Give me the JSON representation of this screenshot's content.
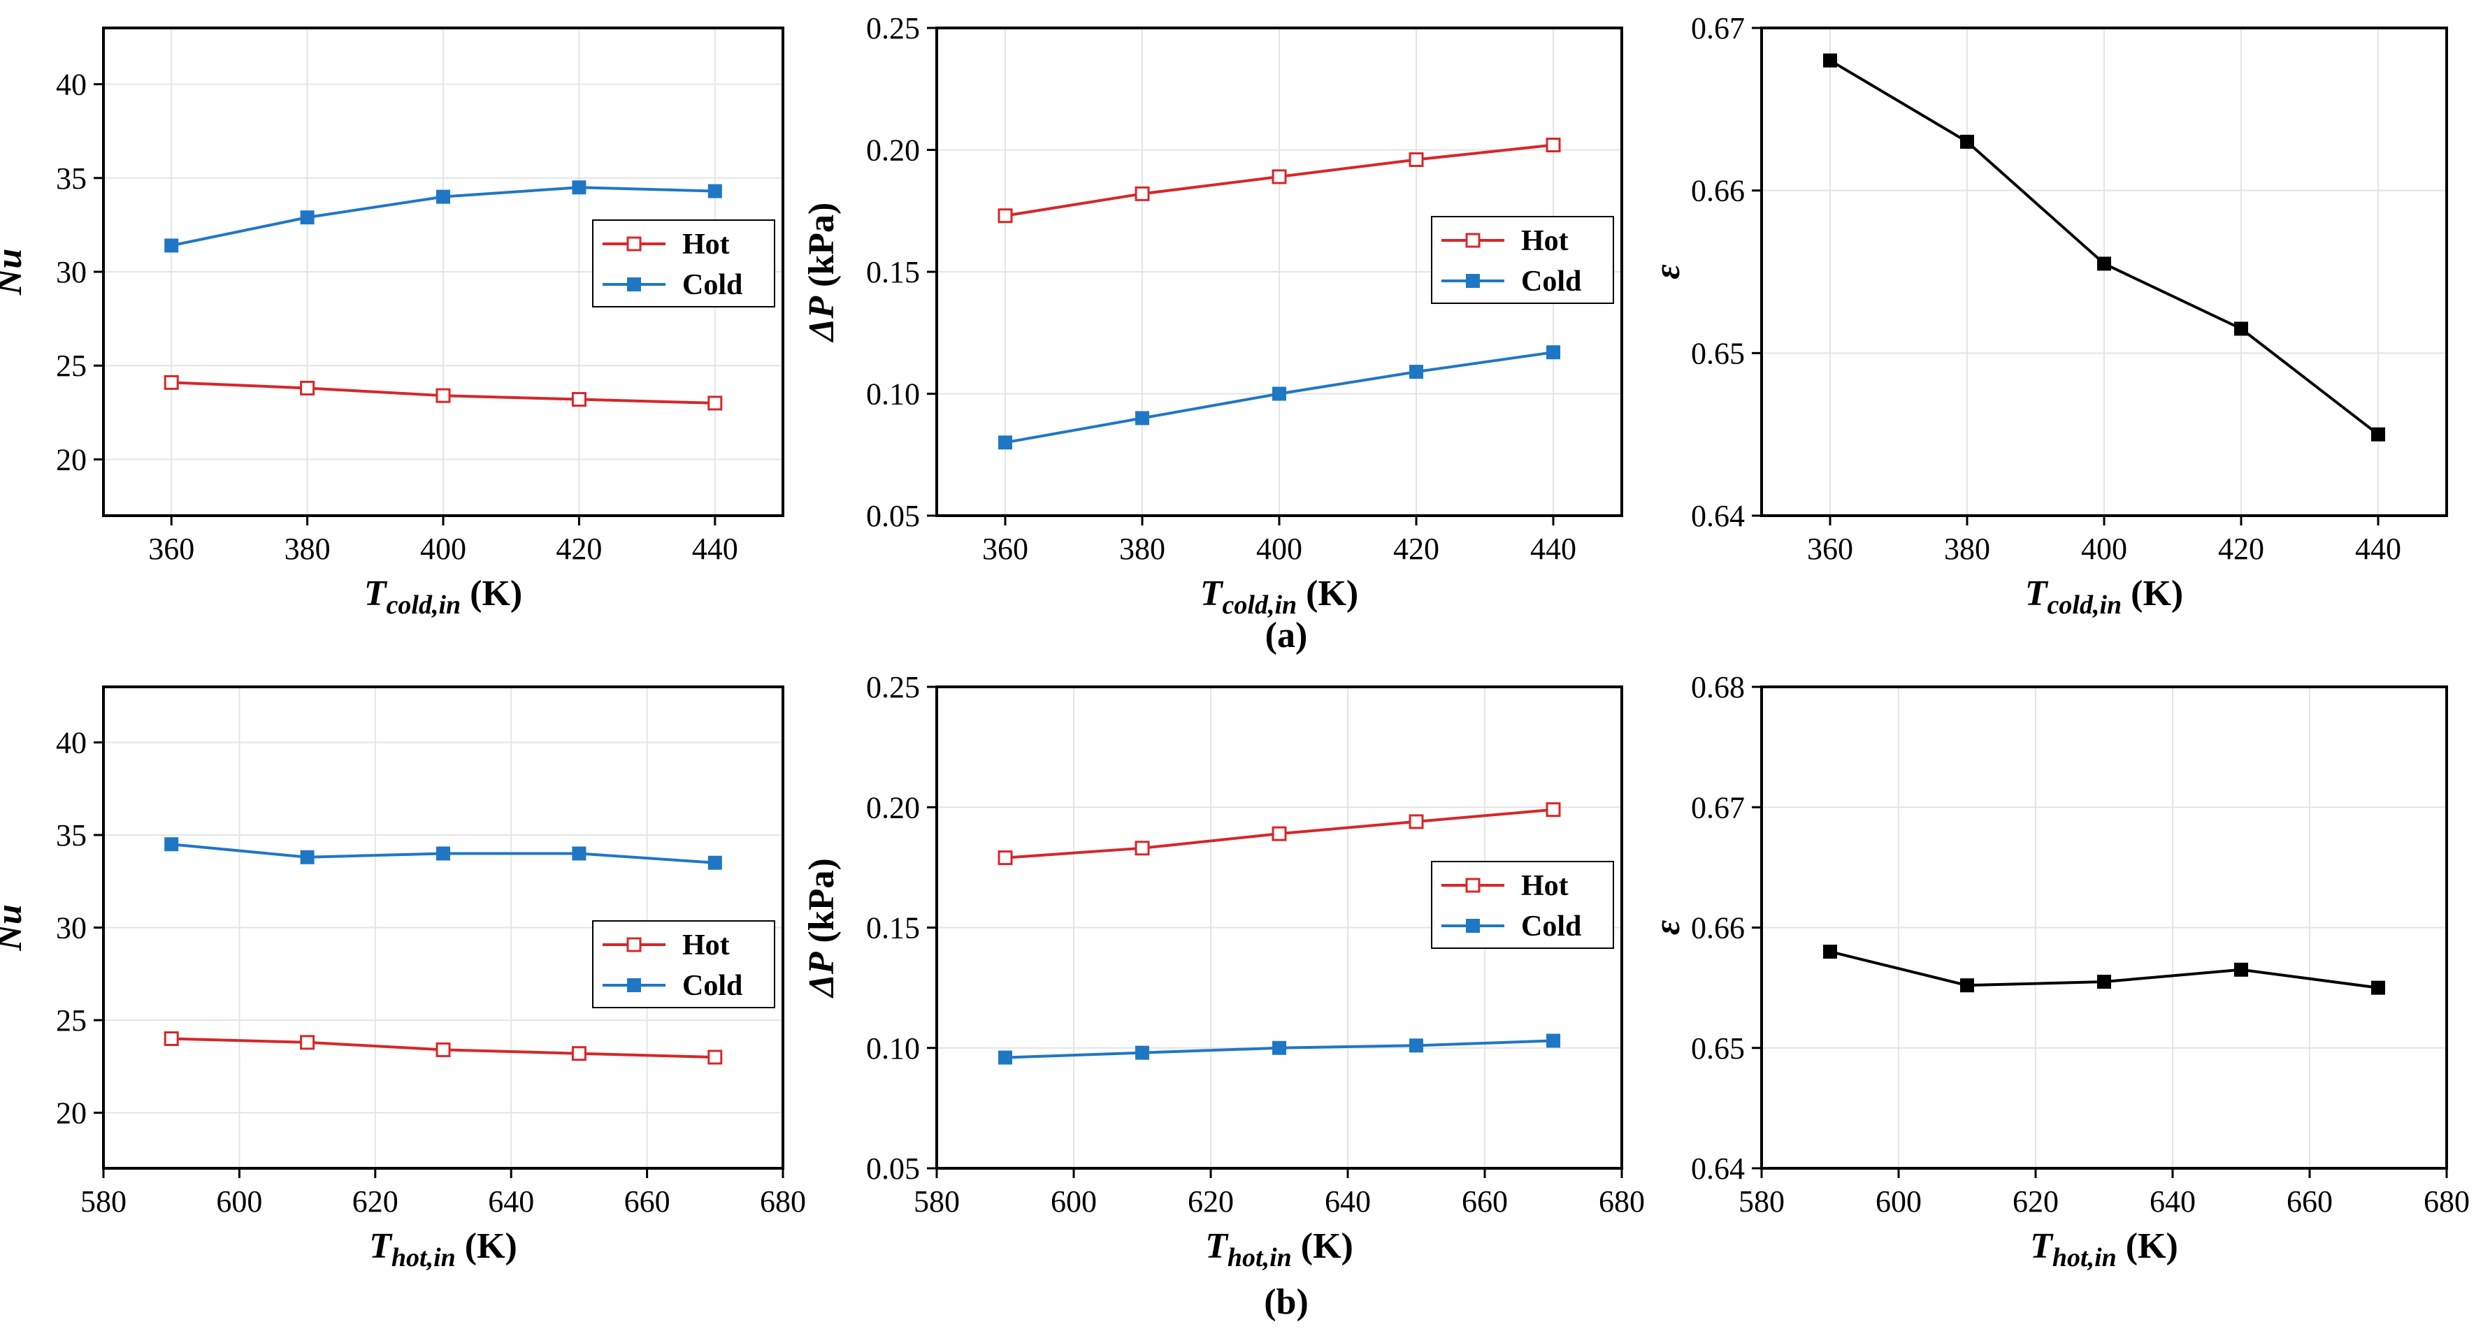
{
  "colors": {
    "hot": "#d62728",
    "cold": "#1f77c4",
    "single": "#000000",
    "grid": "#e4e4e4"
  },
  "captions": {
    "a": "(a)",
    "b": "(b)"
  },
  "chart_data": [
    {
      "id": "a1",
      "type": "line",
      "ylabel": "Nu",
      "ylabel_style": "italic",
      "xlabel": {
        "base": "T",
        "sub": "cold,in",
        "unit": " (K)"
      },
      "x": [
        360,
        380,
        400,
        420,
        440
      ],
      "xlim": [
        350,
        450
      ],
      "xticks": [
        360,
        380,
        400,
        420,
        440
      ],
      "xtick_labels": [
        "360",
        "380",
        "400",
        "420",
        "440"
      ],
      "ylim": [
        17,
        43
      ],
      "yticks": [
        20,
        25,
        30,
        35,
        40
      ],
      "ytick_labels": [
        "20",
        "25",
        "30",
        "35",
        "40"
      ],
      "legend": "center-right",
      "series": [
        {
          "name": "Hot",
          "values": [
            24.1,
            23.8,
            23.4,
            23.2,
            23.0
          ],
          "marker": "hollow-square",
          "color": "#d62728"
        },
        {
          "name": "Cold",
          "values": [
            31.4,
            32.9,
            34.0,
            34.5,
            34.3
          ],
          "marker": "filled-square",
          "color": "#1f77c4"
        }
      ]
    },
    {
      "id": "a2",
      "type": "line",
      "ylabel": "ΔP (kPa)",
      "ylabel_style": "mixed",
      "ylabel_parts": {
        "ital": "ΔP",
        "rest": " (kPa)"
      },
      "xlabel": {
        "base": "T",
        "sub": "cold,in",
        "unit": " (K)"
      },
      "x": [
        360,
        380,
        400,
        420,
        440
      ],
      "xlim": [
        350,
        450
      ],
      "xticks": [
        360,
        380,
        400,
        420,
        440
      ],
      "xtick_labels": [
        "360",
        "380",
        "400",
        "420",
        "440"
      ],
      "ylim": [
        0.05,
        0.25
      ],
      "yticks": [
        0.05,
        0.1,
        0.15,
        0.2,
        0.25
      ],
      "ytick_labels": [
        "0.05",
        "0.10",
        "0.15",
        "0.20",
        "0.25"
      ],
      "legend": "upper-right",
      "series": [
        {
          "name": "Hot",
          "values": [
            0.173,
            0.182,
            0.189,
            0.196,
            0.202
          ],
          "marker": "hollow-square",
          "color": "#d62728"
        },
        {
          "name": "Cold",
          "values": [
            0.08,
            0.09,
            0.1,
            0.109,
            0.117
          ],
          "marker": "filled-square",
          "color": "#1f77c4"
        }
      ]
    },
    {
      "id": "a3",
      "type": "line",
      "ylabel": "ε",
      "ylabel_style": "italic",
      "xlabel": {
        "base": "T",
        "sub": "cold,in",
        "unit": " (K)"
      },
      "x": [
        360,
        380,
        400,
        420,
        440
      ],
      "xlim": [
        350,
        450
      ],
      "xticks": [
        360,
        380,
        400,
        420,
        440
      ],
      "xtick_labels": [
        "360",
        "380",
        "400",
        "420",
        "440"
      ],
      "ylim": [
        0.64,
        0.67
      ],
      "yticks": [
        0.64,
        0.65,
        0.66,
        0.67
      ],
      "ytick_labels": [
        "0.64",
        "0.65",
        "0.66",
        "0.67"
      ],
      "legend": "none",
      "series": [
        {
          "name": "ε",
          "values": [
            0.668,
            0.663,
            0.6555,
            0.6515,
            0.645
          ],
          "marker": "filled-square",
          "color": "#000000"
        }
      ]
    },
    {
      "id": "b1",
      "type": "line",
      "ylabel": "Nu",
      "ylabel_style": "italic",
      "xlabel": {
        "base": "T",
        "sub": "hot,in",
        "unit": " (K)"
      },
      "x": [
        590,
        610,
        630,
        650,
        670
      ],
      "xlim": [
        580,
        680
      ],
      "xticks": [
        580,
        600,
        620,
        640,
        660,
        680
      ],
      "xtick_labels": [
        "580",
        "600",
        "620",
        "640",
        "660",
        "680"
      ],
      "ylim": [
        17,
        43
      ],
      "yticks": [
        20,
        25,
        30,
        35,
        40
      ],
      "ytick_labels": [
        "20",
        "25",
        "30",
        "35",
        "40"
      ],
      "legend": "lower-right",
      "series": [
        {
          "name": "Hot",
          "values": [
            24.0,
            23.8,
            23.4,
            23.2,
            23.0
          ],
          "marker": "hollow-square",
          "color": "#d62728"
        },
        {
          "name": "Cold",
          "values": [
            34.5,
            33.8,
            34.0,
            34.0,
            33.5
          ],
          "marker": "filled-square",
          "color": "#1f77c4"
        }
      ]
    },
    {
      "id": "b2",
      "type": "line",
      "ylabel": "ΔP (kPa)",
      "ylabel_style": "mixed",
      "ylabel_parts": {
        "ital": "ΔP",
        "rest": " (kPa)"
      },
      "xlabel": {
        "base": "T",
        "sub": "hot,in",
        "unit": " (K)"
      },
      "x": [
        590,
        610,
        630,
        650,
        670
      ],
      "xlim": [
        580,
        680
      ],
      "xticks": [
        580,
        600,
        620,
        640,
        660,
        680
      ],
      "xtick_labels": [
        "580",
        "600",
        "620",
        "640",
        "660",
        "680"
      ],
      "ylim": [
        0.05,
        0.25
      ],
      "yticks": [
        0.05,
        0.1,
        0.15,
        0.2,
        0.25
      ],
      "ytick_labels": [
        "0.05",
        "0.10",
        "0.15",
        "0.20",
        "0.25"
      ],
      "legend": "center-right",
      "series": [
        {
          "name": "Hot",
          "values": [
            0.179,
            0.183,
            0.189,
            0.194,
            0.199
          ],
          "marker": "hollow-square",
          "color": "#d62728"
        },
        {
          "name": "Cold",
          "values": [
            0.096,
            0.098,
            0.1,
            0.101,
            0.103
          ],
          "marker": "filled-square",
          "color": "#1f77c4"
        }
      ]
    },
    {
      "id": "b3",
      "type": "line",
      "ylabel": "ε",
      "ylabel_style": "italic",
      "xlabel": {
        "base": "T",
        "sub": "hot,in",
        "unit": " (K)"
      },
      "x": [
        590,
        610,
        630,
        650,
        670
      ],
      "xlim": [
        580,
        680
      ],
      "xticks": [
        580,
        600,
        620,
        640,
        660,
        680
      ],
      "xtick_labels": [
        "580",
        "600",
        "620",
        "640",
        "660",
        "680"
      ],
      "ylim": [
        0.64,
        0.68
      ],
      "yticks": [
        0.64,
        0.65,
        0.66,
        0.67,
        0.68
      ],
      "ytick_labels": [
        "0.64",
        "0.65",
        "0.66",
        "0.67",
        "0.68"
      ],
      "legend": "none",
      "series": [
        {
          "name": "ε",
          "values": [
            0.658,
            0.6552,
            0.6555,
            0.6565,
            0.655
          ],
          "marker": "filled-square",
          "color": "#000000"
        }
      ]
    }
  ]
}
